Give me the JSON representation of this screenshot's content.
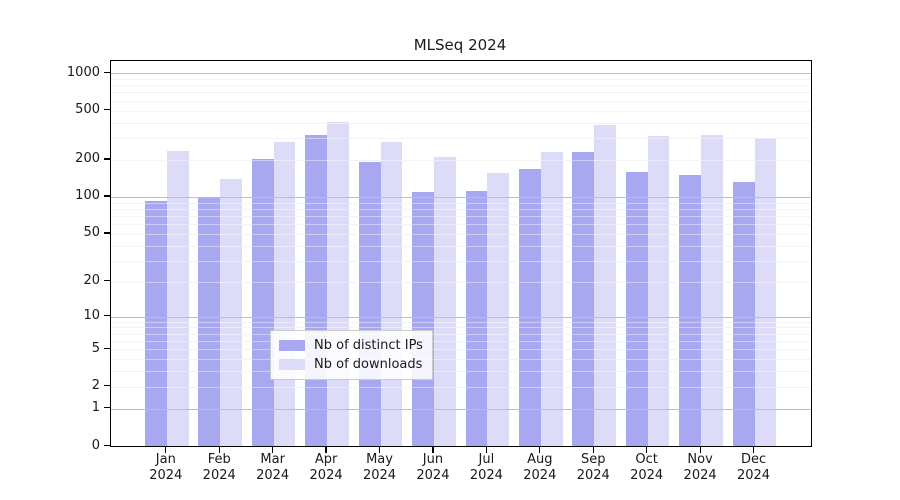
{
  "title": "MLSeq 2024",
  "chart_data": {
    "type": "bar",
    "title": "MLSeq 2024",
    "scale": "log1p",
    "grid": "on",
    "legend_position": "lower-center",
    "xlabel": "",
    "ylabel": "",
    "categories": [
      "Jan",
      "Feb",
      "Mar",
      "Apr",
      "May",
      "Jun",
      "Jul",
      "Aug",
      "Sep",
      "Oct",
      "Nov",
      "Dec"
    ],
    "category_year": "2024",
    "series": [
      {
        "name": "Nb of distinct IPs",
        "color": "#a8a8f0",
        "values": [
          92,
          100,
          205,
          315,
          191,
          110,
          111,
          168,
          232,
          161,
          151,
          132
        ]
      },
      {
        "name": "Nb of downloads",
        "color": "#dcdcf8",
        "values": [
          234,
          140,
          278,
          403,
          281,
          212,
          156,
          231,
          380,
          310,
          320,
          299
        ]
      }
    ],
    "y_ticks": [
      0,
      1,
      2,
      5,
      10,
      20,
      50,
      100,
      200,
      500,
      1000
    ],
    "y_max": 1255,
    "grid_major_values": [
      1,
      10,
      100,
      1000
    ],
    "grid_minor_values": [
      2,
      3,
      4,
      5,
      6,
      7,
      8,
      9,
      20,
      30,
      40,
      50,
      60,
      70,
      80,
      90,
      200,
      300,
      400,
      500,
      600,
      700,
      800,
      900
    ],
    "grid_major_color": "#bfbfbf",
    "grid_minor_color": "#ededed"
  }
}
